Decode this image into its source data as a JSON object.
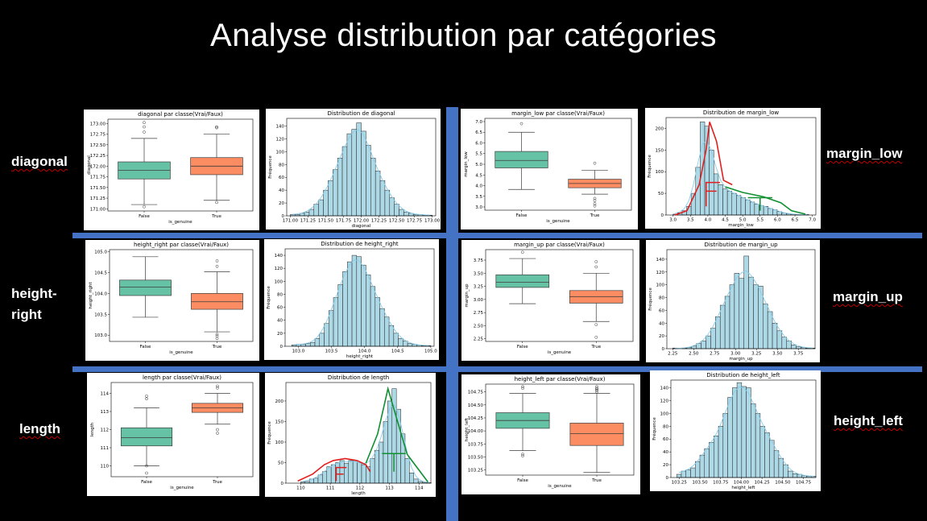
{
  "title": "Analyse distribution par catégories",
  "labels": {
    "diagonal": "diagonal",
    "height_right_line1": "height-",
    "height_right_line2": "right",
    "length": "length",
    "margin_low": "margin_low",
    "margin_up": "margin_up",
    "height_left": "height_left"
  },
  "colors": {
    "background": "#000000",
    "separator": "#4472c4",
    "box_false": "#66c2a5",
    "box_true": "#fc8d62",
    "hist_bar": "#add8e6",
    "kde": "#87ceeb",
    "annot_red": "#e02020",
    "annot_green": "#109030"
  },
  "chart_data": [
    {
      "id": "box_diagonal",
      "type": "boxplot",
      "title": "diagonal par classe(Vrai/Faux)",
      "xlabel": "is_genuine",
      "ylabel": "diagonal",
      "categories": [
        "False",
        "True"
      ],
      "yticks": [
        "171.00",
        "171.25",
        "171.50",
        "171.75",
        "172.00",
        "172.25",
        "172.50",
        "172.75",
        "173.00"
      ],
      "ylim": [
        170.95,
        173.1
      ],
      "boxes": [
        {
          "name": "False",
          "whislo": 171.1,
          "q1": 171.7,
          "med": 171.9,
          "q3": 172.1,
          "whishi": 172.65,
          "fliers": [
            171.05,
            172.8,
            172.92,
            173.02
          ]
        },
        {
          "name": "True",
          "whislo": 171.2,
          "q1": 171.8,
          "med": 172.0,
          "q3": 172.2,
          "whishi": 172.75,
          "fliers": [
            171.15,
            172.9,
            172.92
          ]
        }
      ]
    },
    {
      "id": "hist_diagonal",
      "type": "histogram",
      "title": "Distribution de diagonal",
      "xlabel": "diagonal",
      "ylabel": "Fréquence",
      "xticks": [
        "171.00",
        "171.25",
        "171.50",
        "171.75",
        "172.00",
        "172.25",
        "172.50",
        "172.75",
        "173.00"
      ],
      "xtick_values": [
        171.0,
        171.25,
        171.5,
        171.75,
        172.0,
        172.25,
        172.5,
        172.75,
        173.0
      ],
      "yticks": [
        0,
        20,
        40,
        60,
        80,
        100,
        120,
        140
      ],
      "xlim": [
        170.95,
        173.05
      ],
      "ylim": [
        0,
        152
      ],
      "bin_start": 171.0,
      "bin_width": 0.0667,
      "counts": [
        2,
        2,
        4,
        6,
        10,
        18,
        25,
        40,
        55,
        72,
        90,
        108,
        128,
        135,
        145,
        132,
        110,
        90,
        70,
        55,
        40,
        28,
        18,
        10,
        6,
        4,
        2,
        2,
        1,
        1
      ]
    },
    {
      "id": "box_margin_low",
      "type": "boxplot",
      "title": "margin_low par classe(Vrai/Faux)",
      "xlabel": "is_genuine",
      "ylabel": "margin_low",
      "categories": [
        "False",
        "True"
      ],
      "yticks": [
        "3.0",
        "3.5",
        "4.0",
        "4.5",
        "5.0",
        "5.5",
        "6.0",
        "6.5",
        "7.0"
      ],
      "ylim": [
        2.85,
        7.15
      ],
      "boxes": [
        {
          "name": "False",
          "whislo": 3.82,
          "q1": 4.83,
          "med": 5.18,
          "q3": 5.6,
          "whishi": 6.5,
          "fliers": [
            6.9
          ]
        },
        {
          "name": "True",
          "whislo": 3.6,
          "q1": 3.9,
          "med": 4.1,
          "q3": 4.3,
          "whishi": 4.72,
          "fliers": [
            3.05,
            3.15,
            3.3,
            3.4,
            5.05
          ]
        }
      ]
    },
    {
      "id": "hist_margin_low",
      "type": "histogram",
      "title": "Distribution de margin_low",
      "xlabel": "margin_low",
      "ylabel": "Fréquence",
      "xticks": [
        "3.0",
        "3.5",
        "4.0",
        "4.5",
        "5.0",
        "5.5",
        "6.0",
        "6.5",
        "7.0"
      ],
      "xtick_values": [
        3.0,
        3.5,
        4.0,
        4.5,
        5.0,
        5.5,
        6.0,
        6.5,
        7.0
      ],
      "yticks": [
        0,
        50,
        100,
        150,
        200
      ],
      "xlim": [
        2.8,
        7.1
      ],
      "ylim": [
        0,
        225
      ],
      "bin_start": 3.0,
      "bin_width": 0.13,
      "counts": [
        2,
        5,
        10,
        20,
        50,
        110,
        215,
        205,
        150,
        95,
        70,
        60,
        55,
        50,
        45,
        40,
        35,
        30,
        25,
        22,
        20,
        15,
        12,
        8,
        5,
        3,
        2,
        1,
        1,
        1
      ]
    },
    {
      "id": "box_height_right",
      "type": "boxplot",
      "title": "height_right par classe(Vrai/Faux)",
      "xlabel": "is_genuine",
      "ylabel": "height_right",
      "categories": [
        "False",
        "True"
      ],
      "yticks": [
        "103.0",
        "103.5",
        "104.0",
        "104.5",
        "105.0"
      ],
      "ylim": [
        102.85,
        105.05
      ],
      "boxes": [
        {
          "name": "False",
          "whislo": 103.43,
          "q1": 103.95,
          "med": 104.15,
          "q3": 104.32,
          "whishi": 104.88,
          "fliers": []
        },
        {
          "name": "True",
          "whislo": 103.08,
          "q1": 103.62,
          "med": 103.8,
          "q3": 104.0,
          "whishi": 104.52,
          "fliers": [
            102.92,
            102.98,
            103.02,
            104.65,
            104.78
          ]
        }
      ]
    },
    {
      "id": "hist_height_right",
      "type": "histogram",
      "title": "Distribution de height_right",
      "xlabel": "height_right",
      "ylabel": "Fréquence",
      "xticks": [
        "103.0",
        "103.5",
        "104.0",
        "104.5",
        "105.0"
      ],
      "xtick_values": [
        103.0,
        103.5,
        104.0,
        104.5,
        105.0
      ],
      "yticks": [
        0,
        20,
        40,
        60,
        80,
        100,
        120,
        140
      ],
      "xlim": [
        102.8,
        105.05
      ],
      "ylim": [
        0,
        150
      ],
      "bin_start": 102.9,
      "bin_width": 0.07,
      "counts": [
        2,
        3,
        3,
        4,
        6,
        12,
        20,
        35,
        55,
        75,
        95,
        115,
        130,
        140,
        138,
        125,
        110,
        92,
        75,
        58,
        45,
        32,
        20,
        12,
        8,
        4,
        3,
        2,
        1,
        1
      ]
    },
    {
      "id": "box_margin_up",
      "type": "boxplot",
      "title": "margin_up par classe(Vrai/Faux)",
      "xlabel": "is_genuine",
      "ylabel": "margin_up",
      "categories": [
        "False",
        "True"
      ],
      "yticks": [
        "2.25",
        "2.50",
        "2.75",
        "3.00",
        "3.25",
        "3.50",
        "3.75"
      ],
      "ylim": [
        2.2,
        3.95
      ],
      "boxes": [
        {
          "name": "False",
          "whislo": 2.92,
          "q1": 3.23,
          "med": 3.33,
          "q3": 3.47,
          "whishi": 3.78,
          "fliers": [
            3.9
          ]
        },
        {
          "name": "True",
          "whislo": 2.58,
          "q1": 2.93,
          "med": 3.05,
          "q3": 3.17,
          "whishi": 3.5,
          "fliers": [
            2.28,
            2.52,
            3.62,
            3.72
          ]
        }
      ]
    },
    {
      "id": "hist_margin_up",
      "type": "histogram",
      "title": "Distribution de margin_up",
      "xlabel": "margin_up",
      "ylabel": "Fréquence",
      "xticks": [
        "2.25",
        "2.50",
        "2.75",
        "3.00",
        "3.25",
        "3.50",
        "3.75"
      ],
      "xtick_values": [
        2.25,
        2.5,
        2.75,
        3.0,
        3.25,
        3.5,
        3.75
      ],
      "yticks": [
        0,
        20,
        40,
        60,
        80,
        100,
        120,
        140
      ],
      "xlim": [
        2.18,
        3.95
      ],
      "ylim": [
        0,
        155
      ],
      "bin_start": 2.25,
      "bin_width": 0.0567,
      "counts": [
        1,
        0,
        1,
        2,
        4,
        8,
        12,
        20,
        32,
        50,
        68,
        82,
        100,
        118,
        110,
        145,
        112,
        100,
        98,
        70,
        58,
        40,
        28,
        18,
        12,
        6,
        3,
        2,
        1,
        1
      ]
    },
    {
      "id": "box_length",
      "type": "boxplot",
      "title": "length par classe(Vrai/Faux)",
      "xlabel": "is_genuine",
      "ylabel": "length",
      "categories": [
        "False",
        "True"
      ],
      "yticks": [
        "110",
        "111",
        "112",
        "113",
        "114"
      ],
      "ylim": [
        109.4,
        114.6
      ],
      "boxes": [
        {
          "name": "False",
          "whislo": 110.0,
          "q1": 111.1,
          "med": 111.55,
          "q3": 112.1,
          "whishi": 113.2,
          "fliers": [
            109.6,
            110.0,
            113.7,
            113.85
          ]
        },
        {
          "name": "True",
          "whislo": 112.3,
          "q1": 112.95,
          "med": 113.2,
          "q3": 113.45,
          "whishi": 114.0,
          "fliers": [
            111.8,
            112.0,
            114.3,
            114.4
          ]
        }
      ]
    },
    {
      "id": "hist_length",
      "type": "histogram",
      "title": "Distribution de length",
      "xlabel": "length",
      "ylabel": "Fréquence",
      "xticks": [
        "110",
        "111",
        "112",
        "113",
        "114"
      ],
      "xtick_values": [
        110,
        111,
        112,
        113,
        114
      ],
      "yticks": [
        0,
        50,
        100,
        150,
        200
      ],
      "xlim": [
        109.5,
        114.4
      ],
      "ylim": [
        0,
        245
      ],
      "bin_start": 110.0,
      "bin_width": 0.147,
      "counts": [
        3,
        4,
        10,
        12,
        20,
        28,
        40,
        45,
        50,
        55,
        48,
        55,
        55,
        50,
        45,
        40,
        60,
        80,
        100,
        150,
        200,
        230,
        180,
        120,
        60,
        25,
        10,
        4,
        2,
        1
      ]
    },
    {
      "id": "box_height_left",
      "type": "boxplot",
      "title": "height_left par classe(Vrai/Faux)",
      "xlabel": "is_genuine",
      "ylabel": "height_left",
      "categories": [
        "False",
        "True"
      ],
      "yticks": [
        "103.25",
        "103.50",
        "103.75",
        "104.00",
        "104.25",
        "104.50",
        "104.75"
      ],
      "ylim": [
        103.15,
        104.9
      ],
      "boxes": [
        {
          "name": "False",
          "whislo": 103.62,
          "q1": 104.05,
          "med": 104.2,
          "q3": 104.35,
          "whishi": 104.72,
          "fliers": [
            103.52,
            103.55,
            104.82,
            104.85
          ]
        },
        {
          "name": "True",
          "whislo": 103.2,
          "q1": 103.72,
          "med": 103.95,
          "q3": 104.15,
          "whishi": 104.72,
          "fliers": [
            104.75,
            104.78,
            104.8,
            104.82,
            104.85
          ]
        }
      ]
    },
    {
      "id": "hist_height_left",
      "type": "histogram",
      "title": "Distribution de height_left",
      "xlabel": "height_left",
      "ylabel": "Fréquence",
      "xticks": [
        "103.25",
        "103.50",
        "103.75",
        "104.00",
        "104.25",
        "104.50",
        "104.75"
      ],
      "xtick_values": [
        103.25,
        103.5,
        103.75,
        104.0,
        104.25,
        104.5,
        104.75
      ],
      "yticks": [
        0,
        20,
        40,
        60,
        80,
        100,
        120,
        140
      ],
      "xlim": [
        103.15,
        104.9
      ],
      "ylim": [
        0,
        152
      ],
      "bin_start": 103.22,
      "bin_width": 0.056,
      "counts": [
        5,
        10,
        12,
        15,
        25,
        35,
        45,
        55,
        65,
        80,
        100,
        125,
        140,
        148,
        142,
        140,
        115,
        100,
        80,
        70,
        58,
        42,
        30,
        20,
        10,
        6,
        5,
        3,
        2,
        2
      ]
    }
  ]
}
